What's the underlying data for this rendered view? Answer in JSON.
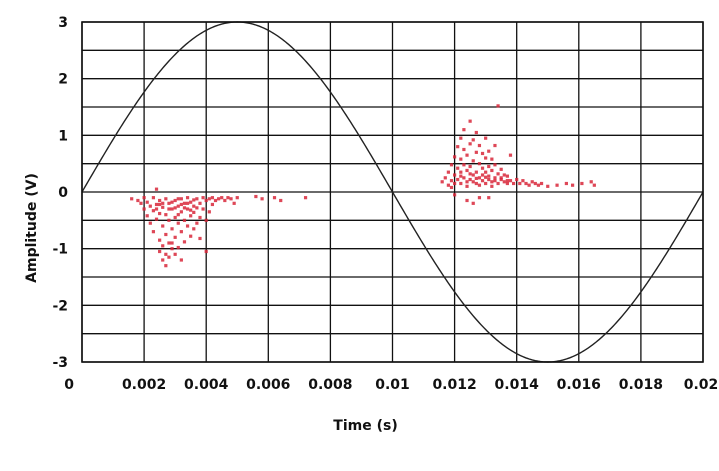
{
  "chart_data": {
    "type": "scatter",
    "title": "",
    "xlabel": "Time (s)",
    "ylabel": "Amplitude (V)",
    "xlim": [
      0,
      0.02
    ],
    "ylim": [
      -3,
      3
    ],
    "x_ticks": [
      "0",
      "0.002",
      "0.004",
      "0.006",
      "0.008",
      "0.01",
      "0.012",
      "0.014",
      "0.016",
      "0.018",
      "0.02"
    ],
    "y_ticks": [
      "3",
      "2",
      "1",
      "0",
      "-1",
      "-2",
      "-3"
    ],
    "grid": true,
    "line_series": {
      "function": "sine",
      "amplitude_v": 3,
      "period_s": 0.02,
      "x": [
        0,
        0.001,
        0.002,
        0.003,
        0.004,
        0.005,
        0.006,
        0.007,
        0.008,
        0.009,
        0.01,
        0.011,
        0.012,
        0.013,
        0.014,
        0.015,
        0.016,
        0.017,
        0.018,
        0.019,
        0.02
      ],
      "y": [
        0,
        0.93,
        1.76,
        2.43,
        2.85,
        3.0,
        2.85,
        2.43,
        1.76,
        0.93,
        0,
        -0.93,
        -1.76,
        -2.43,
        -2.85,
        -3.0,
        -2.85,
        -2.43,
        -1.76,
        -0.93,
        0
      ]
    },
    "scatter_series": [
      {
        "color": "#d8273a",
        "points": [
          [
            0.0016,
            -0.12
          ],
          [
            0.0018,
            -0.15
          ],
          [
            0.0019,
            -0.2
          ],
          [
            0.002,
            -0.1
          ],
          [
            0.002,
            -0.3
          ],
          [
            0.0021,
            -0.18
          ],
          [
            0.0021,
            -0.42
          ],
          [
            0.0022,
            -0.25
          ],
          [
            0.0022,
            -0.55
          ],
          [
            0.0023,
            -0.1
          ],
          [
            0.0023,
            -0.33
          ],
          [
            0.0023,
            -0.7
          ],
          [
            0.0024,
            -0.22
          ],
          [
            0.0024,
            -0.48
          ],
          [
            0.0024,
            0.05
          ],
          [
            0.0025,
            -0.15
          ],
          [
            0.0025,
            -0.38
          ],
          [
            0.0025,
            -0.85
          ],
          [
            0.0025,
            -1.05
          ],
          [
            0.0026,
            -0.27
          ],
          [
            0.0026,
            -0.6
          ],
          [
            0.0026,
            -0.95
          ],
          [
            0.0026,
            -1.2
          ],
          [
            0.0027,
            -0.12
          ],
          [
            0.0027,
            -0.4
          ],
          [
            0.0027,
            -0.75
          ],
          [
            0.0027,
            -1.3
          ],
          [
            0.0028,
            -0.2
          ],
          [
            0.0028,
            -0.5
          ],
          [
            0.0028,
            -0.9
          ],
          [
            0.0028,
            -1.15
          ],
          [
            0.0029,
            -0.3
          ],
          [
            0.0029,
            -0.65
          ],
          [
            0.0029,
            -1.0
          ],
          [
            0.003,
            -0.15
          ],
          [
            0.003,
            -0.45
          ],
          [
            0.003,
            -0.8
          ],
          [
            0.003,
            -1.1
          ],
          [
            0.0031,
            -0.25
          ],
          [
            0.0031,
            -0.55
          ],
          [
            0.0031,
            -0.98
          ],
          [
            0.0032,
            -0.12
          ],
          [
            0.0032,
            -0.35
          ],
          [
            0.0032,
            -0.7
          ],
          [
            0.0032,
            -1.2
          ],
          [
            0.0033,
            -0.2
          ],
          [
            0.0033,
            -0.5
          ],
          [
            0.0033,
            -0.88
          ],
          [
            0.0034,
            -0.1
          ],
          [
            0.0034,
            -0.3
          ],
          [
            0.0034,
            -0.6
          ],
          [
            0.0035,
            -0.18
          ],
          [
            0.0035,
            -0.42
          ],
          [
            0.0035,
            -0.78
          ],
          [
            0.0036,
            -0.14
          ],
          [
            0.0036,
            -0.36
          ],
          [
            0.0036,
            -0.65
          ],
          [
            0.0037,
            -0.12
          ],
          [
            0.0037,
            -0.28
          ],
          [
            0.0037,
            -0.55
          ],
          [
            0.0038,
            -0.2
          ],
          [
            0.0038,
            -0.45
          ],
          [
            0.0038,
            -0.82
          ],
          [
            0.0039,
            -0.1
          ],
          [
            0.0039,
            -0.3
          ],
          [
            0.004,
            -0.15
          ],
          [
            0.004,
            -0.5
          ],
          [
            0.004,
            -1.05
          ],
          [
            0.0041,
            -0.12
          ],
          [
            0.0041,
            -0.35
          ],
          [
            0.0042,
            -0.1
          ],
          [
            0.0042,
            -0.22
          ],
          [
            0.0043,
            -0.15
          ],
          [
            0.0044,
            -0.12
          ],
          [
            0.0045,
            -0.1
          ],
          [
            0.0046,
            -0.15
          ],
          [
            0.0047,
            -0.1
          ],
          [
            0.0048,
            -0.12
          ],
          [
            0.0049,
            -0.2
          ],
          [
            0.005,
            -0.1
          ],
          [
            0.0056,
            -0.08
          ],
          [
            0.0058,
            -0.12
          ],
          [
            0.0062,
            -0.1
          ],
          [
            0.0064,
            -0.15
          ],
          [
            0.0072,
            -0.1
          ],
          [
            0.0029,
            -0.9
          ],
          [
            0.0027,
            -1.1
          ],
          [
            0.0031,
            -0.4
          ],
          [
            0.0026,
            -0.2
          ],
          [
            0.0033,
            -0.28
          ],
          [
            0.0024,
            -0.3
          ],
          [
            0.0025,
            -0.22
          ],
          [
            0.0029,
            -0.18
          ],
          [
            0.0031,
            -0.12
          ],
          [
            0.0034,
            -0.2
          ],
          [
            0.0036,
            -0.25
          ],
          [
            0.0028,
            -0.3
          ],
          [
            0.003,
            -0.28
          ],
          [
            0.0032,
            -0.22
          ],
          [
            0.0035,
            -0.32
          ]
        ]
      },
      {
        "color": "#d8273a",
        "points": [
          [
            0.0116,
            0.18
          ],
          [
            0.0117,
            0.25
          ],
          [
            0.0118,
            0.12
          ],
          [
            0.0118,
            0.35
          ],
          [
            0.0119,
            0.2
          ],
          [
            0.0119,
            0.48
          ],
          [
            0.012,
            0.15
          ],
          [
            0.012,
            0.3
          ],
          [
            0.012,
            0.62
          ],
          [
            0.012,
            -0.05
          ],
          [
            0.0121,
            0.22
          ],
          [
            0.0121,
            0.42
          ],
          [
            0.0121,
            0.8
          ],
          [
            0.0122,
            0.15
          ],
          [
            0.0122,
            0.35
          ],
          [
            0.0122,
            0.58
          ],
          [
            0.0122,
            0.95
          ],
          [
            0.0123,
            0.25
          ],
          [
            0.0123,
            0.48
          ],
          [
            0.0123,
            0.75
          ],
          [
            0.0123,
            1.1
          ],
          [
            0.0124,
            0.18
          ],
          [
            0.0124,
            0.38
          ],
          [
            0.0124,
            0.65
          ],
          [
            0.0124,
            -0.15
          ],
          [
            0.0125,
            0.22
          ],
          [
            0.0125,
            0.45
          ],
          [
            0.0125,
            0.85
          ],
          [
            0.0125,
            1.25
          ],
          [
            0.0126,
            0.3
          ],
          [
            0.0126,
            0.55
          ],
          [
            0.0126,
            0.92
          ],
          [
            0.0127,
            0.15
          ],
          [
            0.0127,
            0.35
          ],
          [
            0.0127,
            0.7
          ],
          [
            0.0127,
            1.05
          ],
          [
            0.0128,
            0.25
          ],
          [
            0.0128,
            0.5
          ],
          [
            0.0128,
            0.82
          ],
          [
            0.0128,
            -0.1
          ],
          [
            0.0129,
            0.2
          ],
          [
            0.0129,
            0.42
          ],
          [
            0.0129,
            0.68
          ],
          [
            0.013,
            0.15
          ],
          [
            0.013,
            0.35
          ],
          [
            0.013,
            0.6
          ],
          [
            0.013,
            0.95
          ],
          [
            0.0131,
            0.22
          ],
          [
            0.0131,
            0.45
          ],
          [
            0.0131,
            0.72
          ],
          [
            0.0132,
            0.18
          ],
          [
            0.0132,
            0.38
          ],
          [
            0.0132,
            0.58
          ],
          [
            0.0133,
            0.25
          ],
          [
            0.0133,
            0.48
          ],
          [
            0.0133,
            0.82
          ],
          [
            0.0134,
            0.15
          ],
          [
            0.0134,
            0.32
          ],
          [
            0.0134,
            1.52
          ],
          [
            0.0135,
            0.22
          ],
          [
            0.0135,
            0.4
          ],
          [
            0.0136,
            0.18
          ],
          [
            0.0136,
            0.3
          ],
          [
            0.0137,
            0.15
          ],
          [
            0.0137,
            0.28
          ],
          [
            0.0138,
            0.2
          ],
          [
            0.0138,
            0.65
          ],
          [
            0.0139,
            0.15
          ],
          [
            0.014,
            0.22
          ],
          [
            0.0141,
            0.15
          ],
          [
            0.0142,
            0.2
          ],
          [
            0.0143,
            0.15
          ],
          [
            0.0144,
            0.12
          ],
          [
            0.0145,
            0.18
          ],
          [
            0.0146,
            0.15
          ],
          [
            0.0147,
            0.12
          ],
          [
            0.0148,
            0.15
          ],
          [
            0.015,
            0.1
          ],
          [
            0.0153,
            0.12
          ],
          [
            0.0156,
            0.15
          ],
          [
            0.0158,
            0.12
          ],
          [
            0.0161,
            0.15
          ],
          [
            0.0164,
            0.18
          ],
          [
            0.0165,
            0.12
          ],
          [
            0.0126,
            -0.2
          ],
          [
            0.0131,
            -0.1
          ],
          [
            0.0119,
            0.08
          ],
          [
            0.0124,
            0.1
          ],
          [
            0.0128,
            0.12
          ],
          [
            0.0132,
            0.1
          ],
          [
            0.0122,
            0.28
          ],
          [
            0.0125,
            0.32
          ],
          [
            0.0127,
            0.24
          ],
          [
            0.0129,
            0.3
          ],
          [
            0.0131,
            0.28
          ],
          [
            0.0133,
            0.2
          ],
          [
            0.0135,
            0.25
          ],
          [
            0.0137,
            0.2
          ],
          [
            0.0126,
            0.18
          ],
          [
            0.013,
            0.26
          ]
        ]
      }
    ]
  }
}
